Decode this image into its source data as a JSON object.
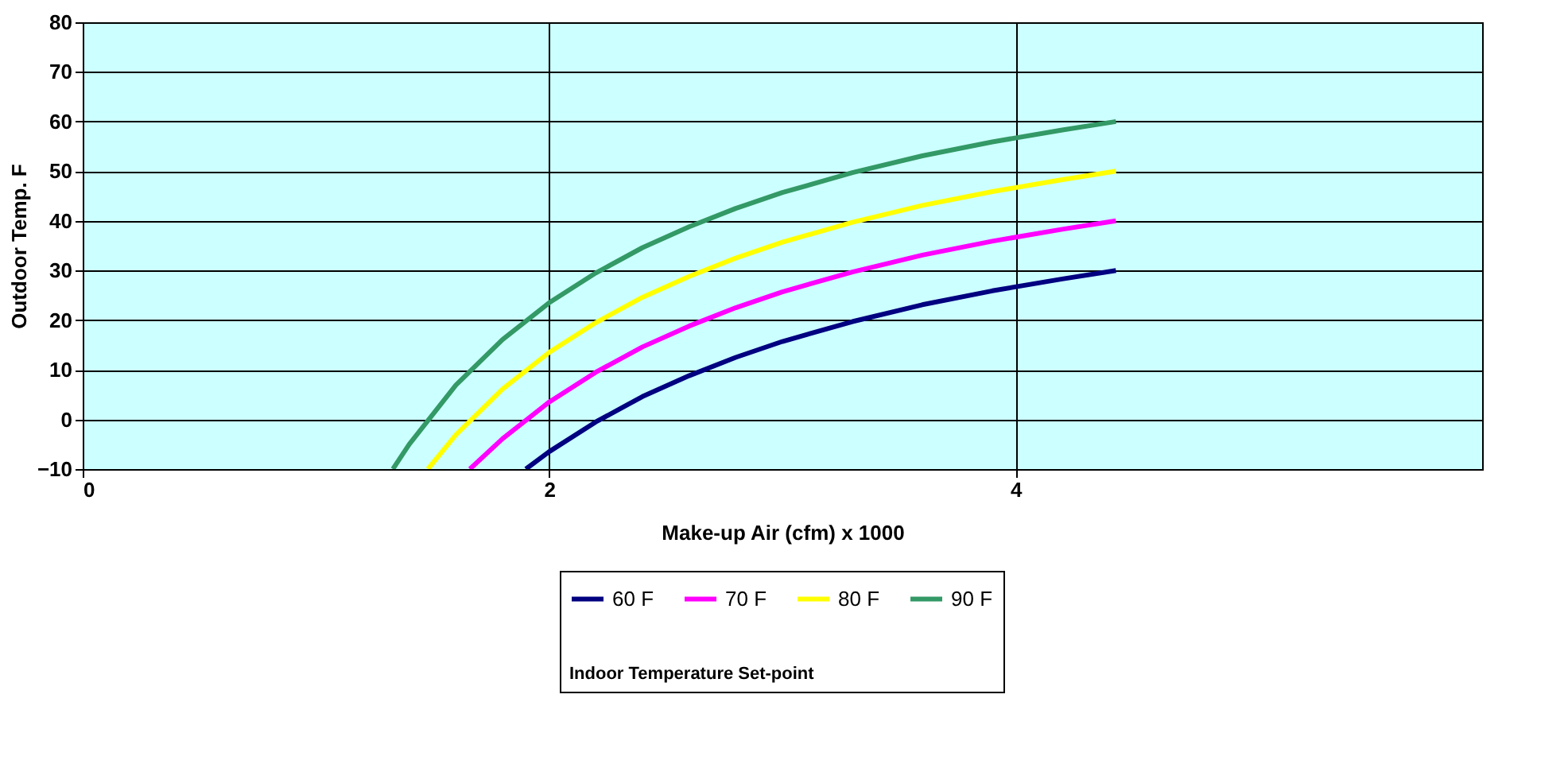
{
  "chart_data": {
    "type": "line",
    "xlabel": "Make-up Air (cfm) x 1000",
    "ylabel": "Outdoor Temp. F",
    "legend_title": "Indoor Temperature Set-point",
    "xlim": [
      0,
      6
    ],
    "xticks": [
      0,
      2,
      4
    ],
    "ylim": [
      -10,
      80
    ],
    "yticks": [
      -10,
      0,
      10,
      20,
      30,
      40,
      50,
      60,
      70,
      80
    ],
    "grid": true,
    "legend": "bottom",
    "marker": "none",
    "line_style": "solid",
    "series": [
      {
        "name": "60 F",
        "color": "#000080",
        "x": [
          1.9,
          2.0,
          2.2,
          2.4,
          2.6,
          2.8,
          3.0,
          3.3,
          3.6,
          3.9,
          4.2,
          4.43
        ],
        "values": [
          -10,
          -6.5,
          -0.5,
          4.6,
          8.8,
          12.5,
          15.7,
          19.7,
          23.1,
          25.9,
          28.3,
          30
        ]
      },
      {
        "name": "70 F",
        "color": "#ff00ff",
        "x": [
          1.66,
          1.8,
          2.0,
          2.2,
          2.4,
          2.6,
          2.8,
          3.0,
          3.3,
          3.6,
          3.9,
          4.2,
          4.43
        ],
        "values": [
          -10,
          -3.9,
          3.5,
          9.5,
          14.6,
          18.8,
          22.5,
          25.7,
          29.7,
          33.1,
          35.9,
          38.3,
          40
        ]
      },
      {
        "name": "80 F",
        "color": "#ffff00",
        "x": [
          1.48,
          1.6,
          1.8,
          2.0,
          2.2,
          2.4,
          2.6,
          2.8,
          3.0,
          3.3,
          3.6,
          3.9,
          4.2,
          4.43
        ],
        "values": [
          -10,
          -3.1,
          6.1,
          13.5,
          19.5,
          24.6,
          28.8,
          32.5,
          35.7,
          39.7,
          43.1,
          45.9,
          48.3,
          50
        ]
      },
      {
        "name": "90 F",
        "color": "#339966",
        "x": [
          1.33,
          1.4,
          1.6,
          1.8,
          2.0,
          2.2,
          2.4,
          2.6,
          2.8,
          3.0,
          3.3,
          3.6,
          3.9,
          4.2,
          4.43
        ],
        "values": [
          -10,
          -5.0,
          6.9,
          16.1,
          23.5,
          29.5,
          34.6,
          38.8,
          42.5,
          45.7,
          49.7,
          53.1,
          55.9,
          58.3,
          60
        ]
      }
    ]
  }
}
